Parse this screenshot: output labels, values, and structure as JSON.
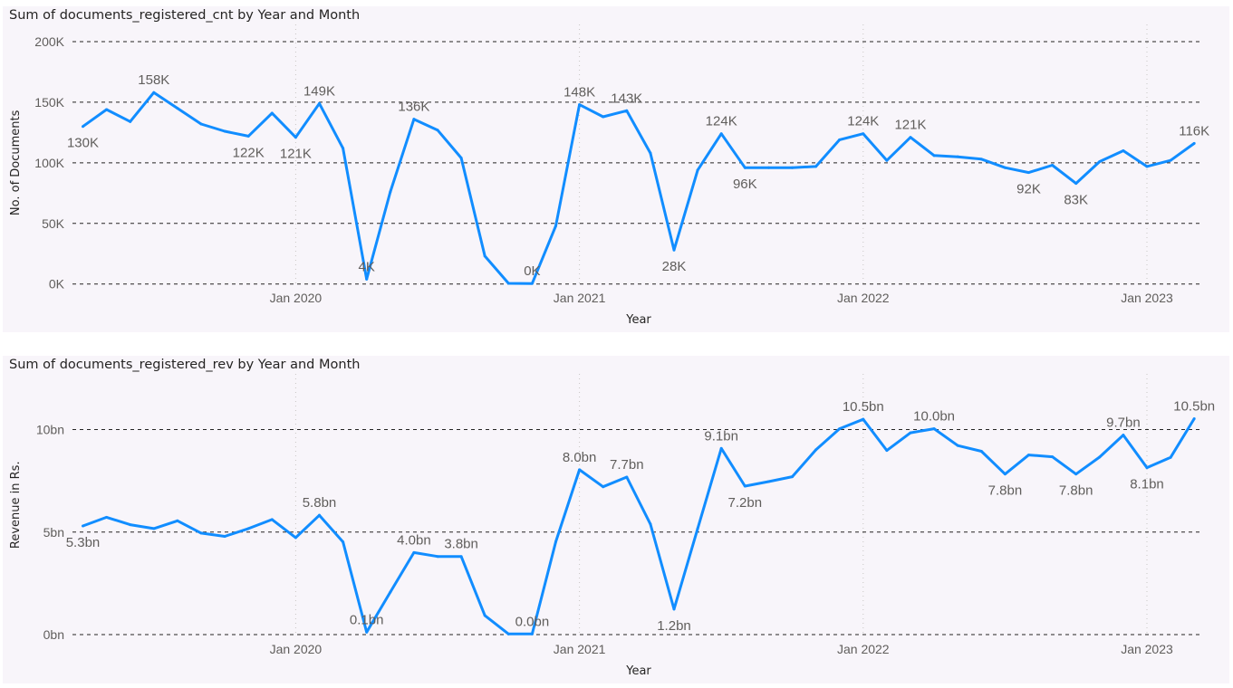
{
  "colors": {
    "line": "#118dff",
    "grid": "#252423",
    "panel": "#f8f5fa"
  },
  "chart_data": [
    {
      "type": "line",
      "title": "Sum of documents_registered_cnt by Year and Month",
      "xlabel": "Year",
      "ylabel": "No. of Documents",
      "ylim": [
        0,
        200000
      ],
      "yticks": [
        {
          "value": 0,
          "label": "0K"
        },
        {
          "value": 50000,
          "label": "50K"
        },
        {
          "value": 100000,
          "label": "100K"
        },
        {
          "value": 150000,
          "label": "150K"
        },
        {
          "value": 200000,
          "label": "200K"
        }
      ],
      "xticks": [
        {
          "index": 9,
          "label": "Jan 2020"
        },
        {
          "index": 21,
          "label": "Jan 2021"
        },
        {
          "index": 33,
          "label": "Jan 2022"
        },
        {
          "index": 45,
          "label": "Jan 2023"
        }
      ],
      "x": [
        "2019-04",
        "2019-05",
        "2019-06",
        "2019-07",
        "2019-08",
        "2019-09",
        "2019-10",
        "2019-11",
        "2019-12",
        "2020-01",
        "2020-02",
        "2020-03",
        "2020-04",
        "2020-05",
        "2020-06",
        "2020-07",
        "2020-08",
        "2020-09",
        "2020-10",
        "2020-11",
        "2020-12",
        "2021-01",
        "2021-02",
        "2021-03",
        "2021-04",
        "2021-05",
        "2021-06",
        "2021-07",
        "2021-08",
        "2021-09",
        "2021-10",
        "2021-11",
        "2021-12",
        "2022-01",
        "2022-02",
        "2022-03",
        "2022-04",
        "2022-05",
        "2022-06",
        "2022-07",
        "2022-08",
        "2022-09",
        "2022-10",
        "2022-11",
        "2022-12",
        "2023-01",
        "2023-02",
        "2023-03"
      ],
      "values": [
        130000,
        144000,
        134000,
        158000,
        145000,
        132000,
        126000,
        122000,
        141000,
        121000,
        149000,
        112000,
        4000,
        76000,
        136000,
        127000,
        104000,
        23000,
        500,
        400,
        48000,
        148000,
        138000,
        143000,
        108000,
        28000,
        94000,
        124000,
        96000,
        96000,
        96000,
        97000,
        119000,
        124000,
        102000,
        121000,
        106000,
        105000,
        103000,
        96000,
        92000,
        98000,
        83000,
        101000,
        110000,
        97000,
        102000,
        116000
      ],
      "data_labels": [
        {
          "index": 0,
          "text": "130K",
          "pos": "below"
        },
        {
          "index": 3,
          "text": "158K",
          "pos": "above"
        },
        {
          "index": 7,
          "text": "122K",
          "pos": "below"
        },
        {
          "index": 9,
          "text": "121K",
          "pos": "below"
        },
        {
          "index": 10,
          "text": "149K",
          "pos": "above"
        },
        {
          "index": 12,
          "text": "4K",
          "pos": "above"
        },
        {
          "index": 14,
          "text": "136K",
          "pos": "above"
        },
        {
          "index": 19,
          "text": "0K",
          "pos": "above"
        },
        {
          "index": 21,
          "text": "148K",
          "pos": "above"
        },
        {
          "index": 23,
          "text": "143K",
          "pos": "above"
        },
        {
          "index": 25,
          "text": "28K",
          "pos": "below"
        },
        {
          "index": 27,
          "text": "124K",
          "pos": "above"
        },
        {
          "index": 28,
          "text": "96K",
          "pos": "below"
        },
        {
          "index": 33,
          "text": "124K",
          "pos": "above"
        },
        {
          "index": 35,
          "text": "121K",
          "pos": "above"
        },
        {
          "index": 40,
          "text": "92K",
          "pos": "below"
        },
        {
          "index": 42,
          "text": "83K",
          "pos": "below"
        },
        {
          "index": 47,
          "text": "116K",
          "pos": "above"
        }
      ],
      "grid": true
    },
    {
      "type": "line",
      "title": "Sum of documents_registered_rev by Year and Month",
      "xlabel": "Year",
      "ylabel": "Revenue in Rs.",
      "ylim": [
        0,
        12
      ],
      "units": "bn",
      "yticks": [
        {
          "value": 0,
          "label": "0bn"
        },
        {
          "value": 5,
          "label": "5bn"
        },
        {
          "value": 10,
          "label": "10bn"
        }
      ],
      "xticks": [
        {
          "index": 9,
          "label": "Jan 2020"
        },
        {
          "index": 21,
          "label": "Jan 2021"
        },
        {
          "index": 33,
          "label": "Jan 2022"
        },
        {
          "index": 45,
          "label": "Jan 2023"
        }
      ],
      "x": [
        "2019-04",
        "2019-05",
        "2019-06",
        "2019-07",
        "2019-08",
        "2019-09",
        "2019-10",
        "2019-11",
        "2019-12",
        "2020-01",
        "2020-02",
        "2020-03",
        "2020-04",
        "2020-05",
        "2020-06",
        "2020-07",
        "2020-08",
        "2020-09",
        "2020-10",
        "2020-11",
        "2020-12",
        "2021-01",
        "2021-02",
        "2021-03",
        "2021-04",
        "2021-05",
        "2021-06",
        "2021-07",
        "2021-08",
        "2021-09",
        "2021-10",
        "2021-11",
        "2021-12",
        "2022-01",
        "2022-02",
        "2022-03",
        "2022-04",
        "2022-05",
        "2022-06",
        "2022-07",
        "2022-08",
        "2022-09",
        "2022-10",
        "2022-11",
        "2022-12",
        "2023-01",
        "2023-02",
        "2023-03"
      ],
      "values": [
        5.3,
        5.72,
        5.36,
        5.17,
        5.55,
        4.95,
        4.79,
        5.17,
        5.61,
        4.73,
        5.82,
        4.52,
        0.12,
        2.07,
        4.0,
        3.81,
        3.81,
        0.93,
        0.03,
        0.03,
        4.53,
        8.04,
        7.21,
        7.68,
        5.39,
        1.24,
        5.17,
        9.08,
        7.24,
        7.46,
        7.7,
        9.01,
        10.04,
        10.5,
        8.98,
        9.84,
        10.04,
        9.22,
        8.94,
        7.83,
        8.76,
        8.67,
        7.83,
        8.66,
        9.73,
        8.14,
        8.64,
        10.53
      ],
      "data_labels": [
        {
          "index": 0,
          "text": "5.3bn",
          "pos": "below"
        },
        {
          "index": 10,
          "text": "5.8bn",
          "pos": "above"
        },
        {
          "index": 12,
          "text": "0.1bn",
          "pos": "above"
        },
        {
          "index": 14,
          "text": "4.0bn",
          "pos": "above"
        },
        {
          "index": 16,
          "text": "3.8bn",
          "pos": "above"
        },
        {
          "index": 19,
          "text": "0.0bn",
          "pos": "above"
        },
        {
          "index": 21,
          "text": "8.0bn",
          "pos": "above"
        },
        {
          "index": 23,
          "text": "7.7bn",
          "pos": "above"
        },
        {
          "index": 25,
          "text": "1.2bn",
          "pos": "below"
        },
        {
          "index": 27,
          "text": "9.1bn",
          "pos": "above"
        },
        {
          "index": 28,
          "text": "7.2bn",
          "pos": "below"
        },
        {
          "index": 33,
          "text": "10.5bn",
          "pos": "above"
        },
        {
          "index": 36,
          "text": "10.0bn",
          "pos": "above"
        },
        {
          "index": 39,
          "text": "7.8bn",
          "pos": "below"
        },
        {
          "index": 42,
          "text": "7.8bn",
          "pos": "below"
        },
        {
          "index": 44,
          "text": "9.7bn",
          "pos": "above"
        },
        {
          "index": 45,
          "text": "8.1bn",
          "pos": "below"
        },
        {
          "index": 47,
          "text": "10.5bn",
          "pos": "above"
        }
      ],
      "grid": true
    }
  ]
}
